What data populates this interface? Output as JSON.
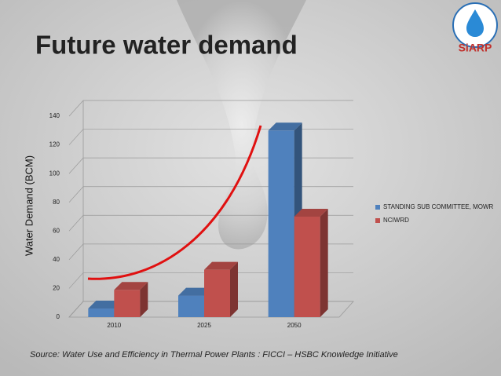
{
  "title": "Future water demand",
  "logo": "SiARP",
  "source": "Source: Water Use and Efficiency in Thermal Power Plants : FICCI – HSBC Knowledge Initiative",
  "chart_data": {
    "type": "bar3d",
    "y_label": "Water Demand (BCM)",
    "categories": [
      "2010",
      "2025",
      "2050"
    ],
    "series": [
      {
        "name": "STANDING SUB COMMITTEE, MOWR",
        "color": "#4f81bd",
        "values": [
          6,
          15,
          130
        ]
      },
      {
        "name": "NCIWRD",
        "color": "#c0504d",
        "values": [
          19,
          33,
          70
        ]
      }
    ],
    "ylim": [
      0,
      140
    ],
    "yticks": [
      0,
      20,
      40,
      60,
      80,
      100,
      120,
      140
    ],
    "grid": true,
    "legend": "right"
  }
}
